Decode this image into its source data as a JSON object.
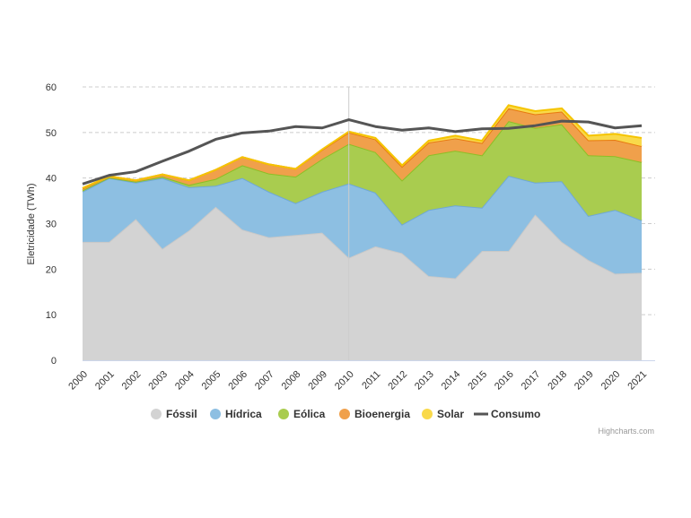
{
  "chart_data": {
    "type": "area",
    "stacked": true,
    "title": "",
    "xlabel": "",
    "ylabel": "Eletricidade (TWh)",
    "ylim": [
      0,
      60
    ],
    "yticks": [
      0,
      10,
      20,
      30,
      40,
      50,
      60
    ],
    "grid": true,
    "legend_position": "bottom-center",
    "categories": [
      "2000",
      "2001",
      "2002",
      "2003",
      "2004",
      "2005",
      "2006",
      "2007",
      "2008",
      "2009",
      "2010",
      "2011",
      "2012",
      "2013",
      "2014",
      "2015",
      "2016",
      "2017",
      "2018",
      "2019",
      "2020",
      "2021"
    ],
    "series": [
      {
        "name": "Fóssil",
        "color": "#c8c8c8",
        "fill": "#d3d3d3",
        "values": [
          26,
          26,
          31,
          24.5,
          28.5,
          33.7,
          28.7,
          27,
          27.5,
          28,
          22.5,
          25,
          23.5,
          18.5,
          18,
          24,
          24,
          32,
          26,
          22,
          19,
          19.2
        ]
      },
      {
        "name": "Hídrica",
        "color": "#6fa8d6",
        "fill": "#8dbfe2",
        "values": [
          11,
          14,
          8,
          15.5,
          9.5,
          4.6,
          11.3,
          10,
          7,
          9,
          16.3,
          11.8,
          6.3,
          14.5,
          16,
          9.5,
          16.5,
          7,
          13.3,
          9.7,
          14,
          11.5
        ]
      },
      {
        "name": "Eólica",
        "color": "#8cbf26",
        "fill": "#a9cc4f",
        "values": [
          0.3,
          0.1,
          0.2,
          0.3,
          0.5,
          1.5,
          2.8,
          4,
          5.8,
          7.2,
          8.7,
          8.9,
          9.7,
          12,
          12,
          11.5,
          12,
          12,
          12.5,
          13.3,
          11.8,
          12.8
        ]
      },
      {
        "name": "Bioenergia",
        "color": "#e8790e",
        "fill": "#f0a04b",
        "values": [
          0.4,
          0.3,
          0.3,
          0.5,
          1,
          2,
          1.8,
          2,
          1.7,
          2,
          2.5,
          2.8,
          3,
          2.8,
          2.7,
          2.7,
          2.8,
          3,
          2.8,
          3.3,
          3.6,
          3.5
        ]
      },
      {
        "name": "Solar",
        "color": "#f5c400",
        "fill": "#f9d94a",
        "values": [
          0.1,
          0,
          0,
          0,
          0,
          0,
          0,
          0,
          0,
          0.1,
          0.2,
          0.3,
          0.3,
          0.4,
          0.6,
          0.5,
          0.7,
          0.7,
          0.7,
          1,
          1.3,
          1.8
        ]
      }
    ],
    "line_series": {
      "name": "Consumo",
      "color": "#555555",
      "values": [
        38.7,
        40.6,
        41.4,
        43.7,
        45.9,
        48.5,
        49.9,
        50.3,
        51.3,
        51,
        52.8,
        51.3,
        50.5,
        51,
        50.2,
        50.8,
        50.9,
        51.5,
        52.5,
        52.3,
        51,
        51.5
      ]
    },
    "crosshair_category": "2010"
  },
  "credits": "Highcharts.com"
}
